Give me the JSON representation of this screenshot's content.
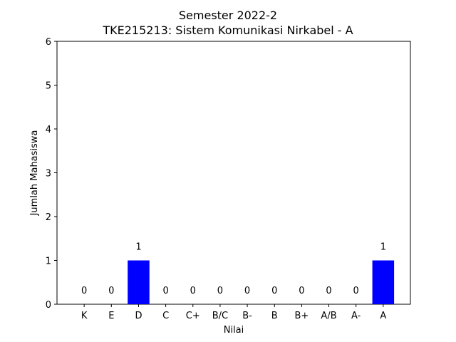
{
  "chart_data": {
    "type": "bar",
    "title_line1": "Semester 2022-2",
    "title_line2": "TKE215213: Sistem Komunikasi Nirkabel - A",
    "xlabel": "Nilai",
    "ylabel": "Jumlah Mahasiswa",
    "categories": [
      "K",
      "E",
      "D",
      "C",
      "C+",
      "B/C",
      "B-",
      "B",
      "B+",
      "A/B",
      "A-",
      "A"
    ],
    "values": [
      0,
      0,
      1,
      0,
      0,
      0,
      0,
      0,
      0,
      0,
      0,
      1
    ],
    "ylim": [
      0,
      6
    ],
    "yticks": [
      0,
      1,
      2,
      3,
      4,
      5,
      6
    ],
    "bar_color": "#0000ff",
    "grid": false,
    "legend": "none"
  }
}
